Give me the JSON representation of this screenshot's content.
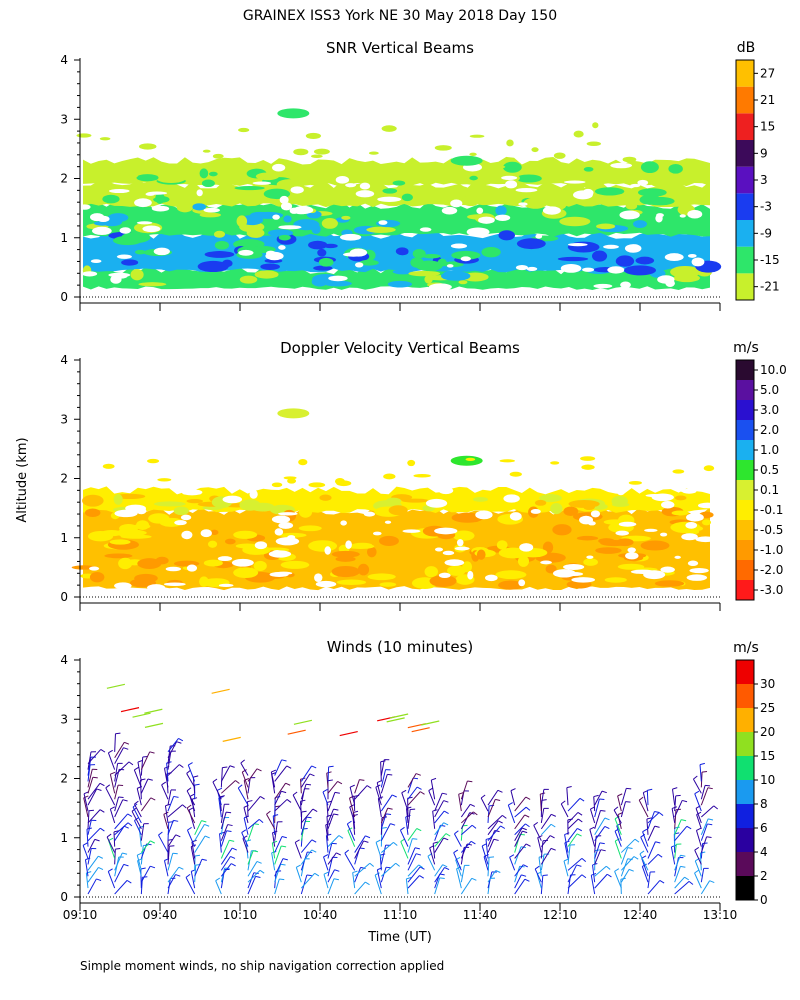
{
  "figure_title": "GRAINEX ISS3 York NE  30 May 2018 Day 150",
  "footnote": "Simple moment winds, no ship navigation correction applied",
  "y_axis_label": "Altitude (km)",
  "x_axis_label": "Time (UT)",
  "chart_data": [
    {
      "type": "heatmap",
      "title": "SNR Vertical Beams",
      "xlabel": "",
      "ylabel": "Altitude (km)",
      "ylim": [
        0,
        4
      ],
      "yticks": [
        "0",
        "1",
        "2",
        "3",
        "4"
      ],
      "xlim": [
        "09:10",
        "13:10"
      ],
      "colorbar": {
        "unit": "dB",
        "levels": [
          "-21",
          "-15",
          "-9",
          "-3",
          "3",
          "9",
          "15",
          "21",
          "27"
        ],
        "colors": [
          "#c8f02c",
          "#2ee66a",
          "#1ab0f0",
          "#1a3cf0",
          "#5a10c0",
          "#3c0a5a",
          "#ee2020",
          "#ff7a00",
          "#ffc000"
        ]
      },
      "layers": [
        {
          "bottom": 0.15,
          "top": 0.45,
          "level": "-15"
        },
        {
          "bottom": 0.45,
          "top": 1.05,
          "level": "-9"
        },
        {
          "bottom": 1.05,
          "top": 1.55,
          "level": "-15"
        },
        {
          "bottom": 1.55,
          "top": 1.9,
          "level": "-21"
        },
        {
          "bottom": 1.9,
          "top": 2.3,
          "level": "-21"
        }
      ],
      "features": [
        {
          "time": "10:30",
          "altitude": 3.1,
          "level": "-15"
        },
        {
          "time": "11:35",
          "altitude": 2.3,
          "level": "-15"
        },
        {
          "time": "12:40",
          "altitude": 0.45,
          "level": "-3"
        }
      ]
    },
    {
      "type": "heatmap",
      "title": "Doppler Velocity Vertical Beams",
      "xlabel": "",
      "ylabel": "Altitude (km)",
      "ylim": [
        0,
        4
      ],
      "yticks": [
        "0",
        "1",
        "2",
        "3",
        "4"
      ],
      "xlim": [
        "09:10",
        "13:10"
      ],
      "colorbar": {
        "unit": "m/s",
        "levels": [
          "-3.0",
          "-2.0",
          "-1.0",
          "-0.5",
          "-0.1",
          "0.1",
          "0.5",
          "1.0",
          "2.0",
          "3.0",
          "5.0",
          "10.0"
        ],
        "colors": [
          "#ff1a1a",
          "#ff6a00",
          "#ff9a00",
          "#ffc000",
          "#ffee00",
          "#d8f030",
          "#2ee62e",
          "#1ab0f0",
          "#1a50f0",
          "#2a10d0",
          "#5a10a0",
          "#2a0a30"
        ]
      },
      "layers": [
        {
          "bottom": 0.15,
          "top": 1.45,
          "level": "-0.5"
        },
        {
          "bottom": 1.45,
          "top": 1.8,
          "level": "-0.1"
        }
      ],
      "features": [
        {
          "time": "10:30",
          "altitude": 3.1,
          "level": "0.1"
        },
        {
          "time": "11:35",
          "altitude": 2.3,
          "level": "0.5"
        }
      ]
    },
    {
      "type": "scatter",
      "title": "Winds (10 minutes)",
      "xlabel": "Time (UT)",
      "ylabel": "Altitude (km)",
      "ylim": [
        0,
        4
      ],
      "yticks": [
        "0",
        "1",
        "2",
        "3",
        "4"
      ],
      "xticks": [
        "09:10",
        "09:40",
        "10:10",
        "10:40",
        "11:10",
        "11:40",
        "12:10",
        "12:40",
        "13:10"
      ],
      "xlim": [
        "09:10",
        "13:10"
      ],
      "colorbar": {
        "unit": "m/s",
        "levels": [
          "0",
          "2",
          "4",
          "6",
          "8",
          "10",
          "15",
          "20",
          "25",
          "30"
        ],
        "colors": [
          "#000000",
          "#5a0a5a",
          "#2a00a0",
          "#1020e0",
          "#1a9af0",
          "#10e070",
          "#90e020",
          "#ffb000",
          "#ff5a00",
          "#ee0000"
        ]
      },
      "profiles": [
        {
          "time": "09:10",
          "top": 2.3
        },
        {
          "time": "09:20",
          "top": 2.5
        },
        {
          "time": "09:30",
          "top": 2.2
        },
        {
          "time": "09:40",
          "top": 2.5
        },
        {
          "time": "09:50",
          "top": 2.0
        },
        {
          "time": "10:00",
          "top": 2.0
        },
        {
          "time": "10:10",
          "top": 2.1
        },
        {
          "time": "10:20",
          "top": 2.1
        },
        {
          "time": "10:30",
          "top": 2.0
        },
        {
          "time": "10:40",
          "top": 2.0
        },
        {
          "time": "10:50",
          "top": 1.8
        },
        {
          "time": "11:00",
          "top": 2.1
        },
        {
          "time": "11:10",
          "top": 1.9
        },
        {
          "time": "11:20",
          "top": 1.7
        },
        {
          "time": "11:30",
          "top": 1.7
        },
        {
          "time": "11:40",
          "top": 1.6
        },
        {
          "time": "11:50",
          "top": 1.6
        },
        {
          "time": "12:00",
          "top": 1.6
        },
        {
          "time": "12:10",
          "top": 1.6
        },
        {
          "time": "12:20",
          "top": 1.6
        },
        {
          "time": "12:30",
          "top": 1.6
        },
        {
          "time": "12:40",
          "top": 1.6
        },
        {
          "time": "12:50",
          "top": 1.6
        },
        {
          "time": "13:00",
          "top": 2.0
        }
      ]
    }
  ]
}
